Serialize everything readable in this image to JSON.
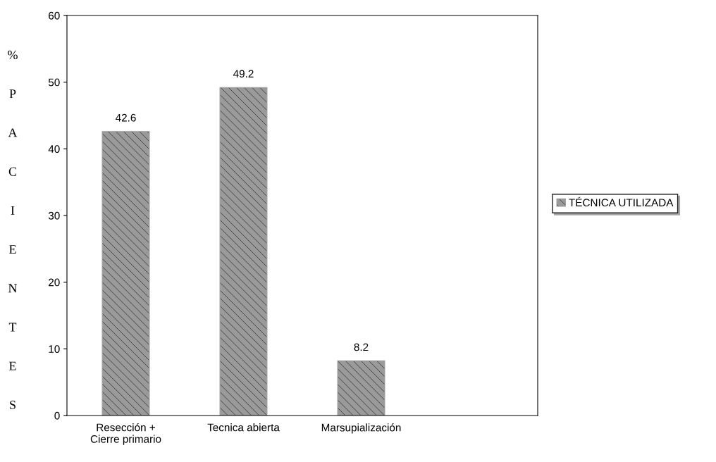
{
  "chart_data": {
    "type": "bar",
    "ylabel": "% PACIENTES",
    "categories": [
      "Resección +\nCierre primario",
      "Tecnica abierta",
      "Marsupialización",
      null
    ],
    "series": [
      {
        "name": "TÉCNICA UTILIZADA",
        "color": "#9a9a9a",
        "values": [
          42.6,
          49.2,
          8.2,
          null
        ]
      }
    ],
    "ylim": [
      0,
      60
    ],
    "yticks": [
      0,
      10,
      20,
      30,
      40,
      50,
      60
    ],
    "data_labels": true,
    "legend": "right",
    "grid": false
  }
}
